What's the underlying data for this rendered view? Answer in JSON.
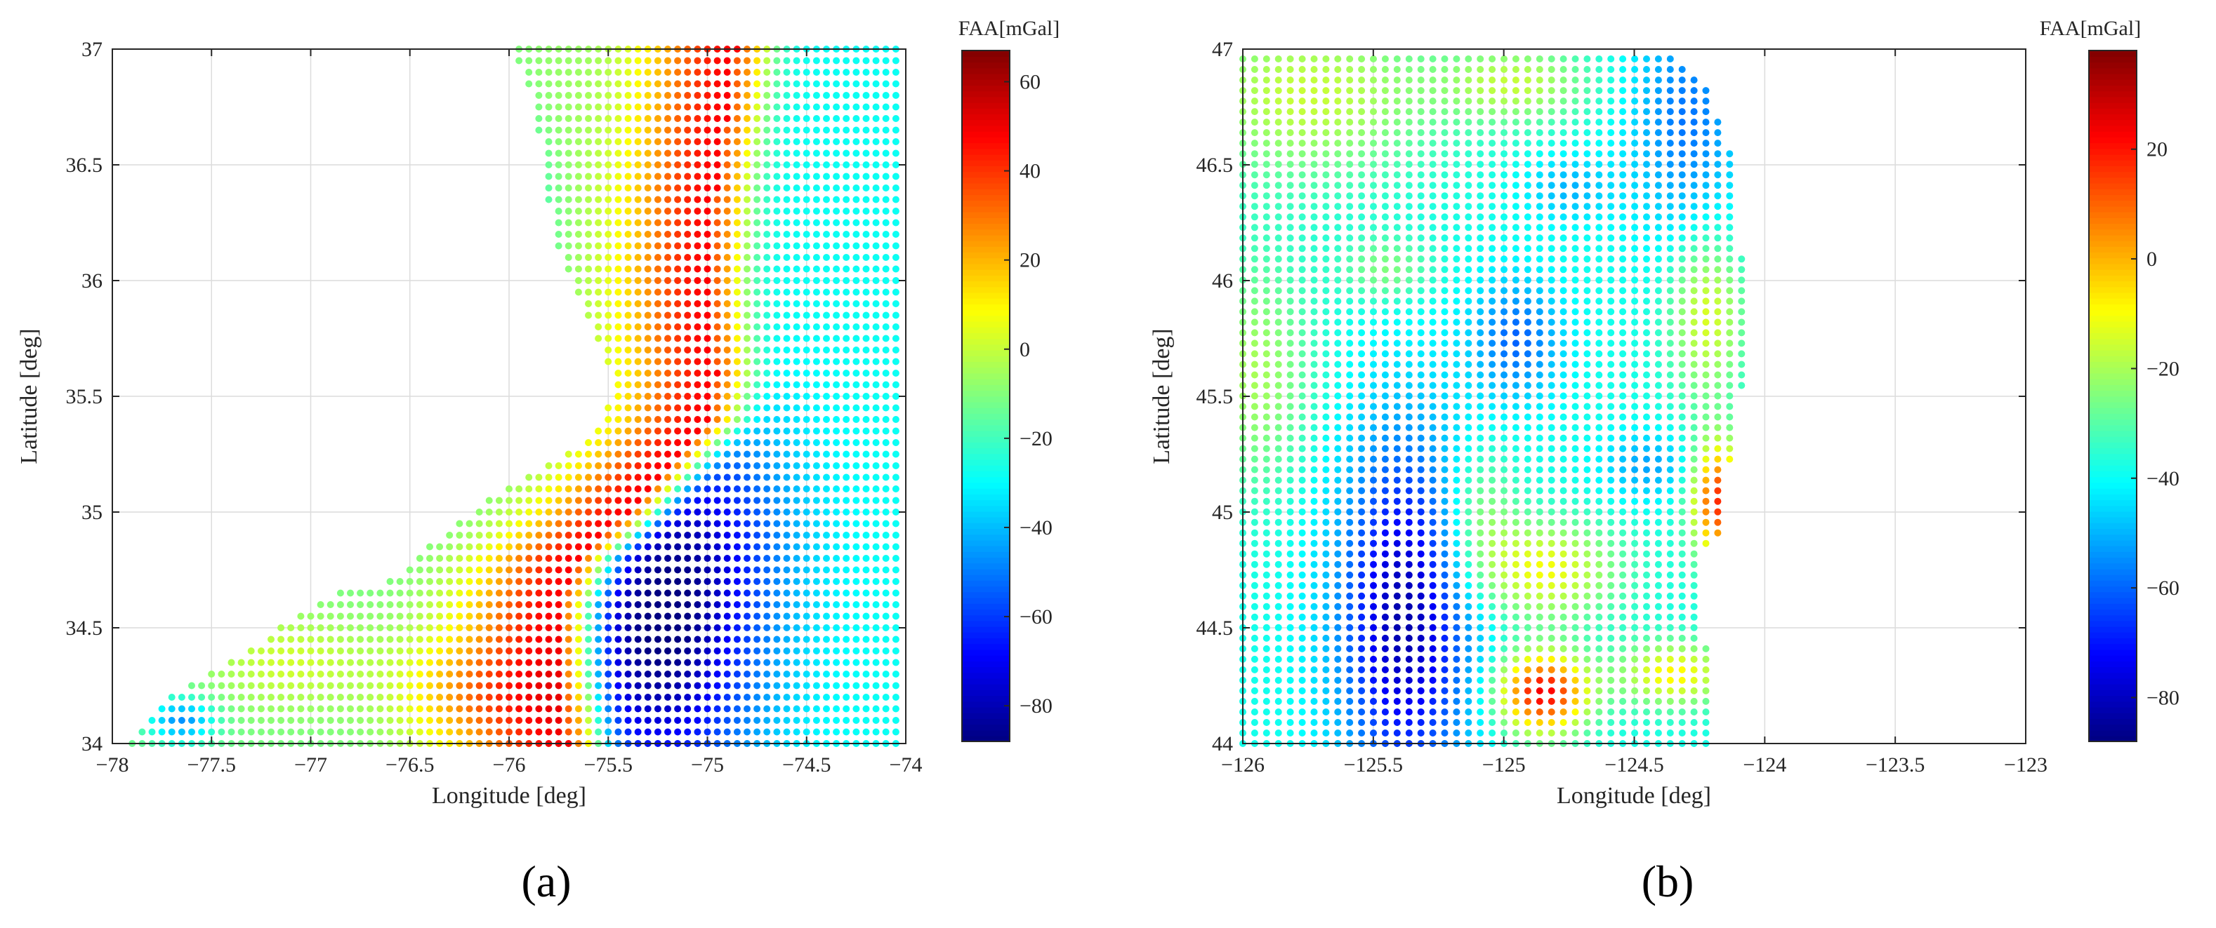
{
  "panels": [
    {
      "label": "(a)",
      "xlabel": "Longitude [deg]",
      "ylabel": "Latitude [deg]",
      "colorbar_title": "FAA[mGal]"
    },
    {
      "label": "(b)",
      "xlabel": "Longitude [deg]",
      "ylabel": "Latitude [deg]",
      "colorbar_title": "FAA[mGal]"
    }
  ],
  "chart_data": [
    {
      "type": "scatter",
      "title": "",
      "xlabel": "Longitude [deg]",
      "ylabel": "Latitude [deg]",
      "xlim": [
        -78,
        -74
      ],
      "ylim": [
        34,
        37
      ],
      "xticks": [
        -78,
        -77.5,
        -77,
        -76.5,
        -76,
        -75.5,
        -75,
        -74.5,
        -74
      ],
      "yticks": [
        34,
        34.5,
        35,
        35.5,
        36,
        36.5,
        37
      ],
      "grid": true,
      "colormap": "jet",
      "colorbar": {
        "title": "FAA[mGal]",
        "range": [
          -88,
          67
        ],
        "ticks": [
          -80,
          -60,
          -40,
          -20,
          0,
          20,
          40,
          60
        ]
      },
      "grid_spacing_deg": 0.05,
      "coastline_west_edge_by_lat": [
        [
          34.0,
          -77.92
        ],
        [
          34.1,
          -77.85
        ],
        [
          34.2,
          -77.7
        ],
        [
          34.3,
          -77.55
        ],
        [
          34.4,
          -77.3
        ],
        [
          34.5,
          -77.15
        ],
        [
          34.6,
          -76.95
        ],
        [
          34.67,
          -76.85
        ],
        [
          34.7,
          -76.6
        ],
        [
          34.8,
          -76.5
        ],
        [
          34.9,
          -76.35
        ],
        [
          35.0,
          -76.2
        ],
        [
          35.1,
          -76.05
        ],
        [
          35.2,
          -75.8
        ],
        [
          35.3,
          -75.6
        ],
        [
          35.4,
          -75.55
        ],
        [
          35.5,
          -75.5
        ],
        [
          35.6,
          -75.5
        ],
        [
          35.7,
          -75.55
        ],
        [
          35.8,
          -75.6
        ],
        [
          35.9,
          -75.65
        ],
        [
          36.0,
          -75.7
        ],
        [
          36.2,
          -75.78
        ],
        [
          36.4,
          -75.82
        ],
        [
          36.6,
          -75.85
        ],
        [
          36.8,
          -75.87
        ],
        [
          37.0,
          -76.0
        ]
      ],
      "ridge_max_line_by_lat": [
        [
          34.0,
          -75.7
        ],
        [
          34.3,
          -75.75
        ],
        [
          34.6,
          -75.75
        ],
        [
          34.8,
          -75.65
        ],
        [
          35.0,
          -75.4
        ],
        [
          35.2,
          -75.2
        ],
        [
          35.4,
          -75.0
        ],
        [
          35.6,
          -74.95
        ],
        [
          35.8,
          -74.97
        ],
        [
          36.0,
          -74.98
        ],
        [
          36.4,
          -74.95
        ],
        [
          36.8,
          -74.88
        ],
        [
          37.0,
          -74.85
        ]
      ],
      "value_summary": {
        "ridge_peak": 65,
        "offshore_basin_low": -85,
        "far_offshore": -30,
        "southwest_shelf_low": -60
      }
    },
    {
      "type": "scatter",
      "title": "",
      "xlabel": "Longitude [deg]",
      "ylabel": "Latitude [deg]",
      "xlim": [
        -126,
        -123
      ],
      "ylim": [
        44,
        47
      ],
      "xticks": [
        -126,
        -125.5,
        -125,
        -124.5,
        -124,
        -123.5,
        -123
      ],
      "yticks": [
        44,
        44.5,
        45,
        45.5,
        46,
        46.5,
        47
      ],
      "grid": true,
      "colormap": "jet",
      "colorbar": {
        "title": "FAA[mGal]",
        "range": [
          -88,
          38
        ],
        "ticks": [
          -80,
          -60,
          -40,
          -20,
          0,
          20
        ]
      },
      "grid_spacing_deg": 0.0455,
      "coastline_east_edge_by_lat": [
        [
          44.0,
          -124.22
        ],
        [
          44.4,
          -124.22
        ],
        [
          44.5,
          -124.25
        ],
        [
          44.85,
          -124.25
        ],
        [
          44.9,
          -124.15
        ],
        [
          45.3,
          -124.13
        ],
        [
          45.35,
          -124.12
        ],
        [
          45.5,
          -124.1
        ],
        [
          45.6,
          -124.05
        ],
        [
          45.8,
          -124.05
        ],
        [
          46.0,
          -124.05
        ],
        [
          46.1,
          -124.07
        ],
        [
          46.2,
          -124.12
        ],
        [
          46.5,
          -124.12
        ],
        [
          46.8,
          -124.2
        ],
        [
          47.0,
          -124.4
        ]
      ],
      "value_summary": {
        "southwest_trough_low": -85,
        "south_central_high": 35,
        "coastal_high_near_45N": 30,
        "background": -38
      }
    }
  ]
}
